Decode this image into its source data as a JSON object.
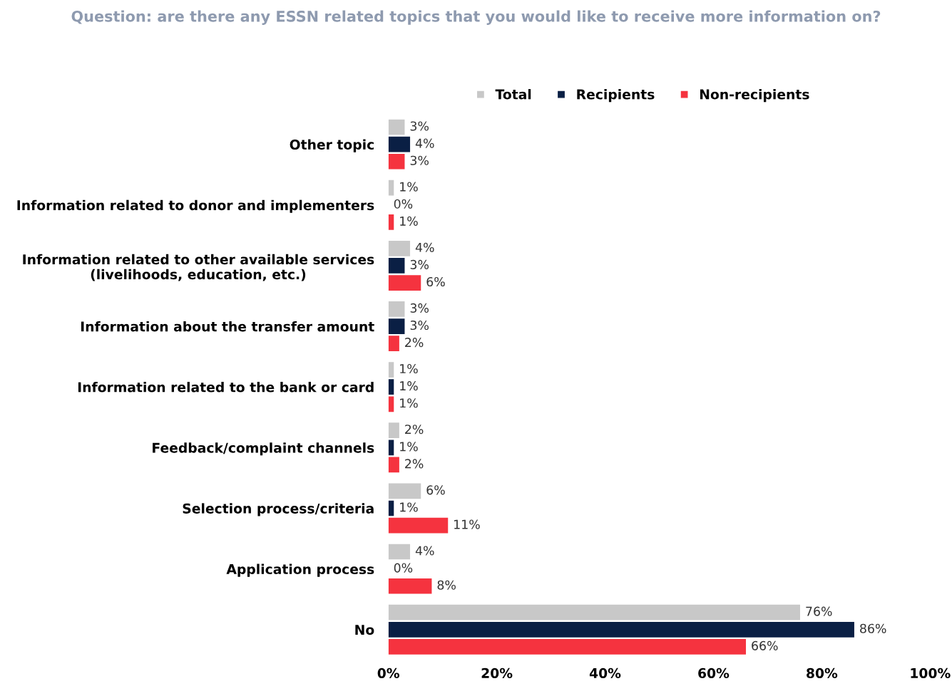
{
  "chart_data": {
    "type": "bar",
    "orientation": "horizontal",
    "title": "Question: are there any ESSN related topics that you would like to receive more information on?",
    "categories": [
      "Other topic",
      "Information related to donor and implementers",
      "Information related to other available services\n(livelihoods, education, etc.)",
      "Information about the transfer amount",
      "Information related to the bank or card",
      "Feedback/complaint channels",
      "Selection process/criteria",
      "Application process",
      "No"
    ],
    "series": [
      {
        "name": "Total",
        "color": "#c8c8c8",
        "values": [
          3,
          1,
          4,
          3,
          1,
          2,
          6,
          4,
          76
        ],
        "value_labels": [
          "3%",
          "1%",
          "4%",
          "3%",
          "1%",
          "2%",
          "6%",
          "4%",
          "76%"
        ]
      },
      {
        "name": "Recipients",
        "color": "#0a1f44",
        "values": [
          4,
          0,
          3,
          3,
          1,
          1,
          1,
          0,
          86
        ],
        "value_labels": [
          "4%",
          "0%",
          "3%",
          "3%",
          "1%",
          "1%",
          "1%",
          "0%",
          "86%"
        ]
      },
      {
        "name": "Non-recipients",
        "color": "#f5333f",
        "values": [
          3,
          1,
          6,
          2,
          1,
          2,
          11,
          8,
          66
        ],
        "value_labels": [
          "3%",
          "1%",
          "6%",
          "2%",
          "1%",
          "2%",
          "11%",
          "8%",
          "66%"
        ]
      }
    ],
    "xlim": [
      0,
      100
    ],
    "xticks": [
      {
        "value": 0,
        "label": "0%"
      },
      {
        "value": 20,
        "label": "20%"
      },
      {
        "value": 40,
        "label": "40%"
      },
      {
        "value": 60,
        "label": "60%"
      },
      {
        "value": 80,
        "label": "80%"
      },
      {
        "value": 100,
        "label": "100%"
      }
    ],
    "legend": "top right",
    "grid": false
  }
}
